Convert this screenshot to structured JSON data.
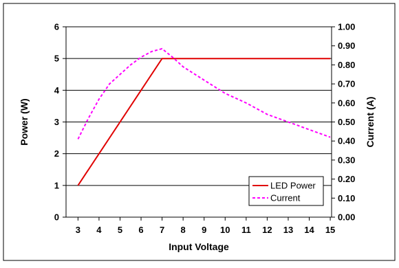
{
  "chart_data": {
    "type": "line",
    "title": "",
    "xlabel": "Input Voltage",
    "ylabel": "Power (W)",
    "y2label": "Current (A)",
    "xlim": [
      3,
      15
    ],
    "ylim": [
      0,
      6
    ],
    "y2lim": [
      0,
      1.0
    ],
    "x_ticks": [
      "3",
      "4",
      "5",
      "6",
      "7",
      "8",
      "9",
      "10",
      "11",
      "12",
      "13",
      "14",
      "15"
    ],
    "y_ticks": [
      "0",
      "1",
      "2",
      "3",
      "4",
      "5",
      "6"
    ],
    "y2_ticks": [
      "0.00",
      "0.10",
      "0.20",
      "0.30",
      "0.40",
      "0.50",
      "0.60",
      "0.70",
      "0.80",
      "0.90",
      "1.00"
    ],
    "grid": "horizontal",
    "legend_position": "bottom-right",
    "series": [
      {
        "name": "LED Power",
        "axis": "left",
        "color": "#e00000",
        "style": "solid",
        "x": [
          3,
          7,
          15
        ],
        "y": [
          1,
          5,
          5
        ]
      },
      {
        "name": "Current",
        "axis": "right",
        "color": "#ff00ff",
        "style": "dashed",
        "x": [
          3,
          3.5,
          4,
          4.5,
          5,
          5.5,
          6,
          6.5,
          7,
          7.5,
          8,
          9,
          10,
          11,
          12,
          13,
          14,
          15
        ],
        "y": [
          0.41,
          0.52,
          0.62,
          0.7,
          0.75,
          0.8,
          0.84,
          0.87,
          0.885,
          0.84,
          0.79,
          0.72,
          0.65,
          0.6,
          0.54,
          0.5,
          0.46,
          0.42
        ]
      }
    ]
  }
}
